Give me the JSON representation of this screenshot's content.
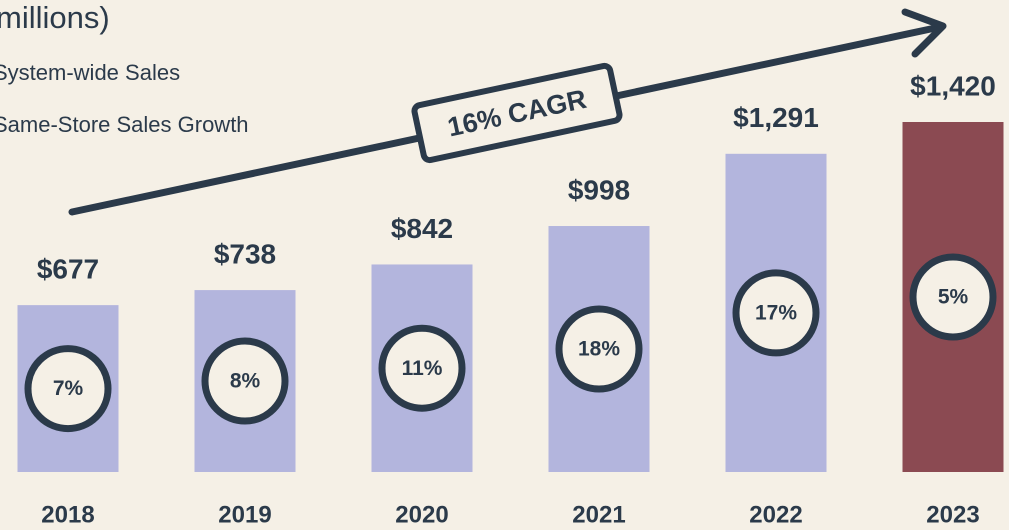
{
  "chart_data": {
    "type": "bar",
    "title": "millions)",
    "annotation": "16% CAGR",
    "categories": [
      "2018",
      "2019",
      "2020",
      "2021",
      "2022",
      "2023"
    ],
    "series": [
      {
        "name": "System-wide Sales",
        "colors": [
          "#b3b5dd",
          "#b3b5dd",
          "#b3b5dd",
          "#b3b5dd",
          "#b3b5dd",
          "#8b4a52"
        ],
        "values": [
          677,
          738,
          842,
          998,
          1291,
          1420
        ],
        "value_labels": [
          "$677",
          "$738",
          "$842",
          "$998",
          "$1,291",
          "$1,420"
        ]
      },
      {
        "name": "Same-Store Sales Growth",
        "color": "#2b3a4a",
        "values": [
          7,
          8,
          11,
          18,
          17,
          5
        ],
        "value_labels": [
          "7%",
          "8%",
          "11%",
          "18%",
          "17%",
          "5%"
        ]
      }
    ]
  }
}
